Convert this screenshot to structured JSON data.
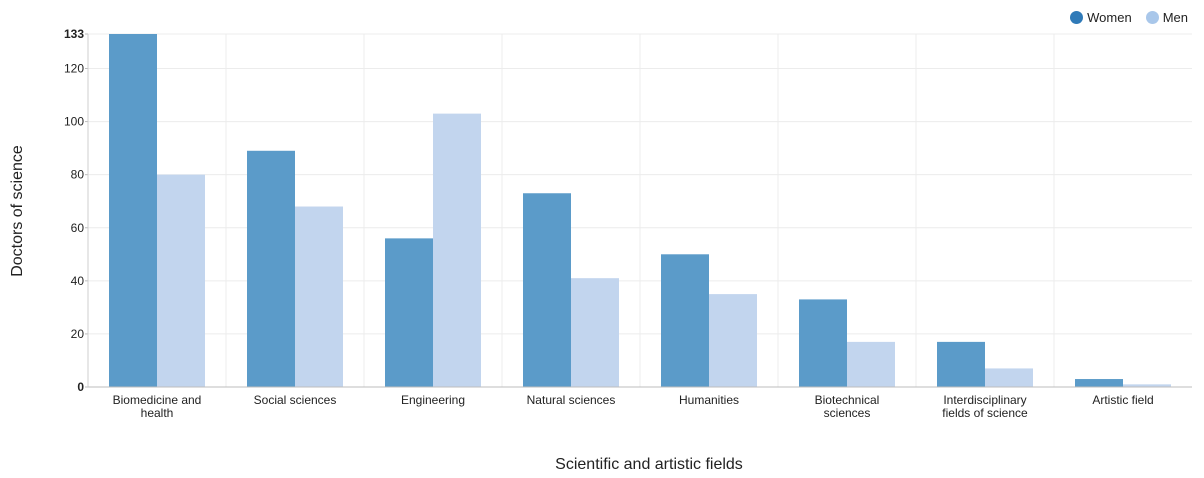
{
  "chart_data": {
    "type": "bar",
    "categories": [
      "Biomedicine and health",
      "Social sciences",
      "Engineering",
      "Natural sciences",
      "Humanities",
      "Biotechnical sciences",
      "Interdisciplinary fields of science",
      "Artistic field"
    ],
    "category_lines": [
      [
        "Biomedicine and",
        "health"
      ],
      [
        "Social sciences"
      ],
      [
        "Engineering"
      ],
      [
        "Natural sciences"
      ],
      [
        "Humanities"
      ],
      [
        "Biotechnical",
        "sciences"
      ],
      [
        "Interdisciplinary",
        "fields of science"
      ],
      [
        "Artistic field"
      ]
    ],
    "series": [
      {
        "name": "Women",
        "color": "#5b9bc9",
        "legend_color": "#2f7ab8",
        "values": [
          133,
          89,
          56,
          73,
          50,
          33,
          17,
          3
        ]
      },
      {
        "name": "Men",
        "color": "#c2d5ee",
        "legend_color": "#a9c7ea",
        "values": [
          80,
          68,
          103,
          41,
          35,
          17,
          7,
          1
        ]
      }
    ],
    "xlabel": "Scientific and artistic fields",
    "ylabel": "Doctors of science",
    "ylim": [
      0,
      133
    ],
    "yticks": [
      0,
      20,
      40,
      60,
      80,
      100,
      120,
      133
    ],
    "ytick_bold": [
      0,
      133
    ],
    "grid": true,
    "legend_position": "top-right"
  }
}
